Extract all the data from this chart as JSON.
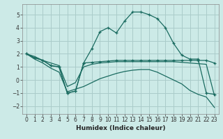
{
  "xlabel": "Humidex (Indice chaleur)",
  "bg_color": "#cceae7",
  "grid_color": "#aaccca",
  "line_color": "#1a6b60",
  "xlim": [
    -0.5,
    23.5
  ],
  "ylim": [
    -2.6,
    5.8
  ],
  "xticks": [
    0,
    1,
    2,
    3,
    4,
    5,
    6,
    7,
    8,
    9,
    10,
    11,
    12,
    13,
    14,
    15,
    16,
    17,
    18,
    19,
    20,
    21,
    22,
    23
  ],
  "yticks": [
    -2,
    -1,
    0,
    1,
    2,
    3,
    4,
    5
  ],
  "series1_x": [
    0,
    1,
    2,
    3,
    4,
    5,
    6,
    7,
    8,
    9,
    10,
    11,
    12,
    13,
    14,
    15,
    16,
    17,
    18,
    19,
    20,
    21,
    22,
    23
  ],
  "series1_y": [
    2.0,
    1.7,
    1.5,
    1.1,
    1.0,
    -1.0,
    -0.85,
    1.3,
    1.35,
    1.4,
    1.45,
    1.5,
    1.5,
    1.5,
    1.5,
    1.5,
    1.5,
    1.5,
    1.5,
    1.5,
    1.5,
    1.5,
    1.5,
    1.3
  ],
  "series2_x": [
    0,
    1,
    2,
    3,
    4,
    5,
    6,
    7,
    8,
    9,
    10,
    11,
    12,
    13,
    14,
    15,
    16,
    17,
    18,
    19,
    20,
    21,
    22,
    23
  ],
  "series2_y": [
    2.0,
    1.7,
    1.5,
    1.1,
    1.0,
    -1.0,
    -0.85,
    1.3,
    2.4,
    3.7,
    4.0,
    3.6,
    4.5,
    5.2,
    5.2,
    5.0,
    4.7,
    4.0,
    2.8,
    1.9,
    1.6,
    1.6,
    -1.0,
    -1.1
  ],
  "series3_x": [
    0,
    1,
    2,
    3,
    4,
    5,
    6,
    7,
    8,
    9,
    10,
    11,
    12,
    13,
    14,
    15,
    16,
    17,
    18,
    19,
    20,
    21,
    22,
    23
  ],
  "series3_y": [
    2.0,
    1.8,
    1.5,
    1.3,
    1.1,
    -0.5,
    -0.2,
    1.0,
    1.2,
    1.3,
    1.35,
    1.4,
    1.4,
    1.4,
    1.4,
    1.4,
    1.4,
    1.4,
    1.4,
    1.35,
    1.3,
    1.25,
    1.2,
    -1.2
  ],
  "series4_x": [
    0,
    1,
    2,
    3,
    4,
    5,
    6,
    7,
    8,
    9,
    10,
    11,
    12,
    13,
    14,
    15,
    16,
    17,
    18,
    19,
    20,
    21,
    22,
    23
  ],
  "series4_y": [
    2.0,
    1.6,
    1.3,
    0.9,
    0.6,
    -0.9,
    -0.7,
    -0.5,
    -0.2,
    0.1,
    0.3,
    0.5,
    0.65,
    0.75,
    0.8,
    0.8,
    0.6,
    0.3,
    0.0,
    -0.3,
    -0.8,
    -1.1,
    -1.3,
    -2.1
  ]
}
